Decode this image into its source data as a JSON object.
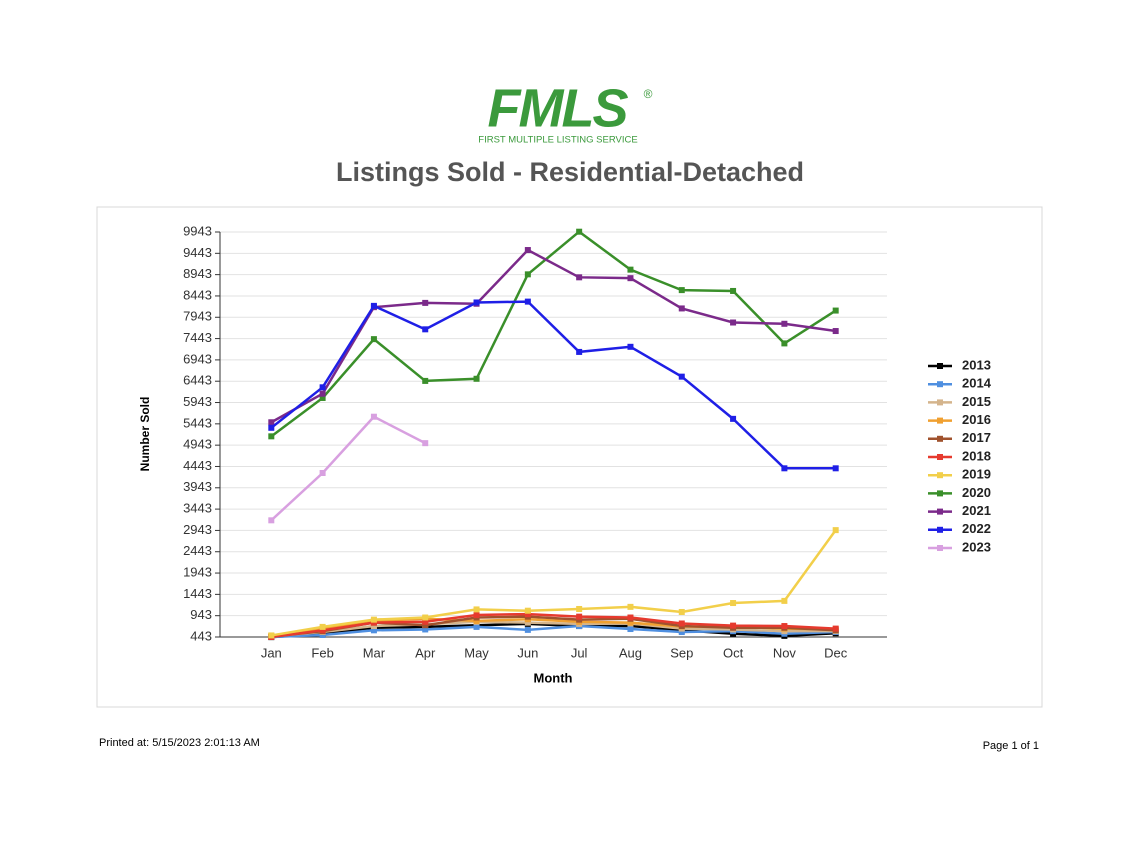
{
  "logo": {
    "text": "FMLS",
    "mark": "®",
    "tagline": "FIRST MULTIPLE LISTING SERVICE"
  },
  "footer": {
    "printed": "Printed at:  5/15/2023 2:01:13 AM",
    "page": "Page 1 of 1"
  },
  "chart_data": {
    "type": "line",
    "title": "Listings Sold - Residential-Detached",
    "x_label": "Month",
    "y_label": "Number Sold",
    "categories": [
      "Jan",
      "Feb",
      "Mar",
      "Apr",
      "May",
      "Jun",
      "Jul",
      "Aug",
      "Sep",
      "Oct",
      "Nov",
      "Dec"
    ],
    "ylim": [
      443,
      9943
    ],
    "yticks": [
      443,
      943,
      1443,
      1943,
      2443,
      2943,
      3443,
      3943,
      4443,
      4943,
      5443,
      5943,
      6443,
      6943,
      7443,
      7943,
      8443,
      8943,
      9443,
      9943
    ],
    "grid": true,
    "legend": "right",
    "series": [
      {
        "name": "2013",
        "color": "#000000",
        "values": [
          440,
          520,
          660,
          680,
          720,
          750,
          700,
          700,
          600,
          520,
          470,
          530
        ]
      },
      {
        "name": "2014",
        "color": "#4f8fe0",
        "values": [
          443,
          490,
          600,
          620,
          680,
          610,
          700,
          630,
          560,
          580,
          520,
          560
        ]
      },
      {
        "name": "2015",
        "color": "#d4b48c",
        "values": [
          460,
          560,
          700,
          740,
          800,
          780,
          750,
          760,
          640,
          620,
          580,
          580
        ]
      },
      {
        "name": "2016",
        "color": "#f0a030",
        "values": [
          470,
          640,
          820,
          870,
          820,
          860,
          800,
          780,
          690,
          680,
          640,
          620
        ]
      },
      {
        "name": "2017",
        "color": "#a0522d",
        "values": [
          450,
          580,
          780,
          720,
          900,
          920,
          850,
          870,
          700,
          660,
          660,
          600
        ]
      },
      {
        "name": "2018",
        "color": "#e63a2e",
        "values": [
          443,
          600,
          780,
          800,
          960,
          980,
          920,
          900,
          760,
          710,
          700,
          640
        ]
      },
      {
        "name": "2019",
        "color": "#f2cf4a",
        "values": [
          480,
          680,
          850,
          900,
          1090,
          1060,
          1100,
          1150,
          1030,
          1240,
          1290,
          2950
        ]
      },
      {
        "name": "2020",
        "color": "#3a8f2a",
        "values": [
          5150,
          6050,
          7430,
          6450,
          6500,
          8950,
          9950,
          9060,
          8580,
          8560,
          7330,
          8100
        ]
      },
      {
        "name": "2021",
        "color": "#7b2a8a",
        "values": [
          5480,
          6150,
          8180,
          8280,
          8260,
          9520,
          8880,
          8860,
          8150,
          7820,
          7790,
          7620
        ]
      },
      {
        "name": "2022",
        "color": "#1f1fe6",
        "values": [
          5350,
          6300,
          8210,
          7660,
          8290,
          8310,
          7130,
          7250,
          6550,
          5560,
          4400,
          4400
        ]
      },
      {
        "name": "2023",
        "color": "#d8a0e0",
        "values": [
          3180,
          4290,
          5610,
          4990,
          null,
          null,
          null,
          null,
          null,
          null,
          null,
          null
        ]
      }
    ]
  }
}
